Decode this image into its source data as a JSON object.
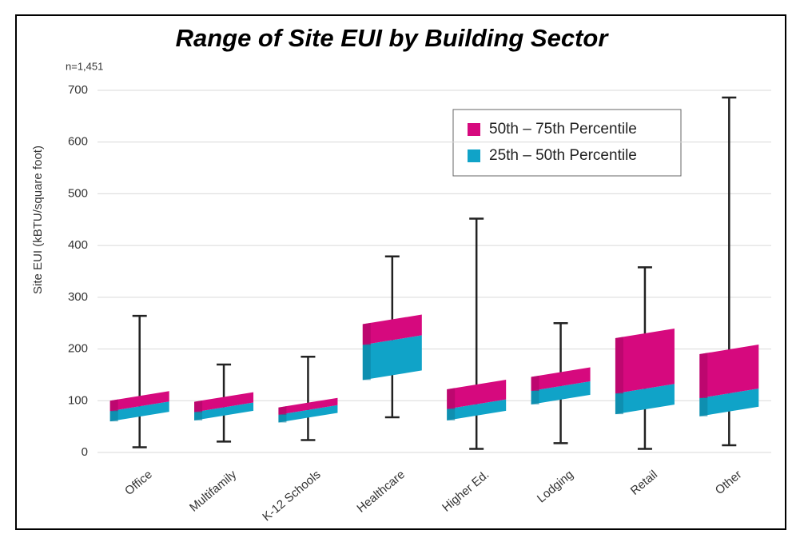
{
  "chart_data": {
    "type": "box",
    "title": "Range of Site EUI by Building Sector",
    "annotation": "n=1,451",
    "y_label": "Site EUI (kBTU/square foot)",
    "categories": [
      "Office",
      "Multifamily",
      "K-12 Schools",
      "Healthcare",
      "Higher Ed.",
      "Lodging",
      "Retail",
      "Other"
    ],
    "boxes": [
      {
        "min": 10,
        "q1": 60,
        "median": 80,
        "q3": 100,
        "max": 264
      },
      {
        "min": 21,
        "q1": 62,
        "median": 78,
        "q3": 98,
        "max": 170
      },
      {
        "min": 24,
        "q1": 58,
        "median": 73,
        "q3": 87,
        "max": 185
      },
      {
        "min": 68,
        "q1": 140,
        "median": 208,
        "q3": 248,
        "max": 379
      },
      {
        "min": 7,
        "q1": 62,
        "median": 84,
        "q3": 122,
        "max": 452
      },
      {
        "min": 18,
        "q1": 93,
        "median": 119,
        "q3": 146,
        "max": 250
      },
      {
        "min": 7,
        "q1": 74,
        "median": 114,
        "q3": 221,
        "max": 358
      },
      {
        "min": 14,
        "q1": 70,
        "median": 105,
        "q3": 190,
        "max": 686
      }
    ],
    "legend": [
      {
        "name": "50th – 75th Percentile",
        "color": "#d6097e"
      },
      {
        "name": "25th – 50th Percentile",
        "color": "#10a3c8"
      }
    ],
    "ylim": [
      0,
      700
    ],
    "yticks": [
      0,
      100,
      200,
      300,
      400,
      500,
      600,
      700
    ],
    "grid": true
  }
}
